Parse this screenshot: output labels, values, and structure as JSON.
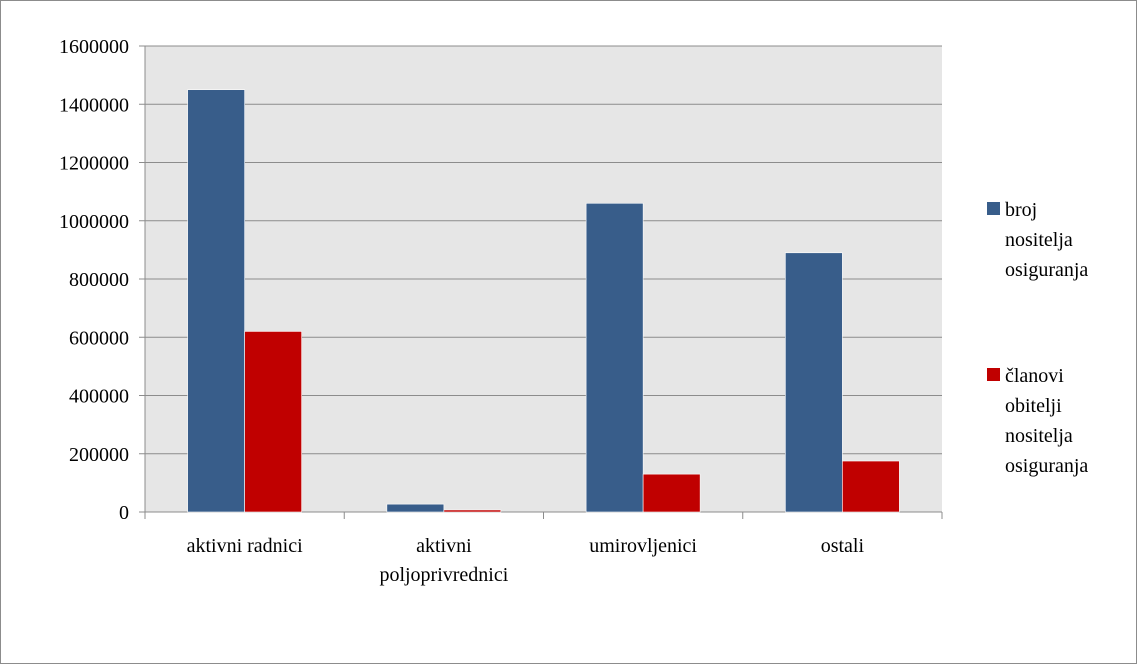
{
  "chart_data": {
    "type": "bar",
    "title": "",
    "xlabel": "",
    "ylabel": "",
    "categories": [
      [
        "aktivni radnici"
      ],
      [
        "aktivni",
        "poljoprivrednici"
      ],
      [
        "umirovljenici"
      ],
      [
        "ostali"
      ]
    ],
    "series": [
      {
        "name": "broj nositelja osiguranja",
        "name_lines": [
          "broj",
          "nositelja",
          "osiguranja"
        ],
        "color": "#385d8a",
        "values": [
          1450000,
          27000,
          1060000,
          890000
        ]
      },
      {
        "name": "članovi obitelji nositelja osiguranja",
        "name_lines": [
          "članovi",
          "obitelji",
          "nositelja",
          "osiguranja"
        ],
        "color": "#c00000",
        "values": [
          620000,
          7000,
          130000,
          175000
        ]
      }
    ],
    "ylim": [
      0,
      1600000
    ],
    "yticks": [
      "0",
      "200000",
      "400000",
      "600000",
      "800000",
      "1000000",
      "1200000",
      "1400000",
      "1600000"
    ],
    "grid": true,
    "plot_background": "#e6e6e6",
    "legend_position": "right"
  }
}
